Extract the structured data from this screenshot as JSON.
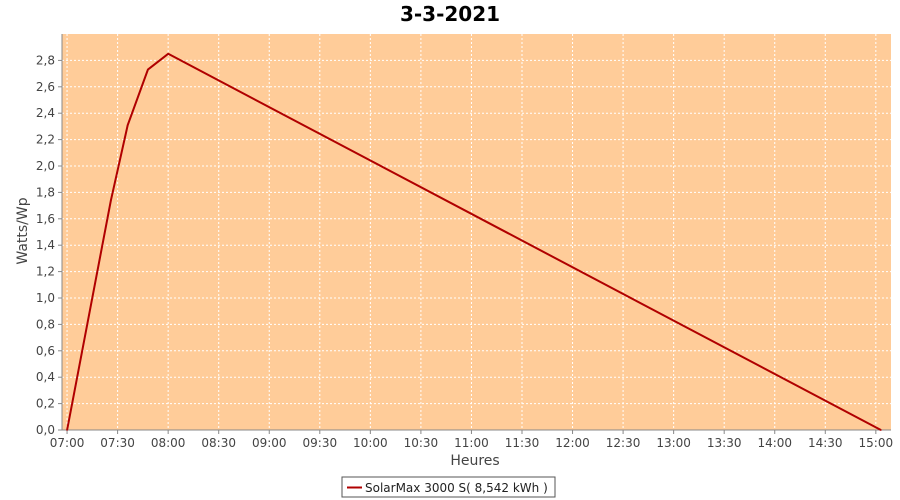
{
  "chart_data": {
    "type": "line",
    "title": "3-3-2021",
    "xlabel": "Heures",
    "ylabel": "Watts/Wp",
    "x_ticks": [
      "07:00",
      "07:30",
      "08:00",
      "08:30",
      "09:00",
      "09:30",
      "10:00",
      "10:30",
      "11:00",
      "11:30",
      "12:00",
      "12:30",
      "13:00",
      "13:30",
      "14:00",
      "14:30",
      "15:00"
    ],
    "y_ticks": [
      "0,0",
      "0,2",
      "0,4",
      "0,6",
      "0,8",
      "1,0",
      "1,2",
      "1,4",
      "1,6",
      "1,8",
      "2,0",
      "2,2",
      "2,4",
      "2,6",
      "2,8"
    ],
    "xlim": [
      "06:57",
      "15:09"
    ],
    "ylim": [
      0,
      3.0
    ],
    "grid": true,
    "legend_position": "bottom-center",
    "series": [
      {
        "name": "SolarMax 3000 S( 8,542 kWh )",
        "color": "#b00000",
        "points": [
          {
            "x": "07:00",
            "y": 0.0
          },
          {
            "x": "07:26",
            "y": 1.74
          },
          {
            "x": "07:36",
            "y": 2.31
          },
          {
            "x": "07:48",
            "y": 2.73
          },
          {
            "x": "08:00",
            "y": 2.85
          },
          {
            "x": "15:03",
            "y": 0.0
          }
        ]
      }
    ]
  },
  "colors": {
    "plot_background": "#ffcc99",
    "grid": "#ffffff",
    "axis": "#888888"
  }
}
